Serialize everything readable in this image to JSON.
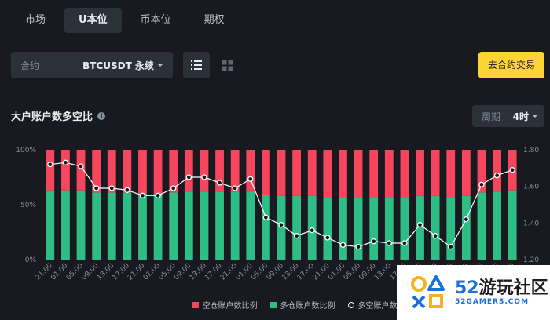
{
  "tabs": [
    {
      "label": "市场",
      "active": false
    },
    {
      "label": "U本位",
      "active": true
    },
    {
      "label": "币本位",
      "active": false
    },
    {
      "label": "期权",
      "active": false
    }
  ],
  "contract": {
    "label": "合约",
    "value": "BTCUSDT 永续"
  },
  "cta_label": "去合约交易",
  "section_title": "大户账户数多空比",
  "period": {
    "label": "周期",
    "value": "4时"
  },
  "legend": {
    "short": "空仓账户数比例",
    "long": "多仓账户数比例",
    "ratio": "多空账户数比值"
  },
  "watermark": {
    "brand": "52游玩社区",
    "brand_num": "52",
    "brand_rest": "游玩社区",
    "sub": "52GAMERS.COM"
  },
  "colors": {
    "short": "#f6465d",
    "long": "#2ebd85",
    "ratio": "#ffffff",
    "accent": "#fcd535"
  },
  "chart_data": {
    "type": "bar",
    "stacked": true,
    "categories": [
      "21:00",
      "01:00",
      "05:00",
      "09:00",
      "13:00",
      "17:00",
      "21:00",
      "01:00",
      "05:00",
      "09:00",
      "13:00",
      "17:00",
      "21:00",
      "01:00",
      "05:00",
      "09:00",
      "13:00",
      "17:00",
      "21:00",
      "01:00",
      "05:00",
      "09:00",
      "13:00",
      "17:00",
      "21:00",
      "01:00",
      "05:00",
      "09:00",
      "13:00",
      "17:00",
      "21:00"
    ],
    "series": [
      {
        "name": "多仓账户数比例",
        "values": [
          63,
          63,
          63,
          61,
          61,
          61,
          60,
          60,
          61,
          62,
          62,
          62,
          62,
          62,
          59,
          58,
          58,
          58,
          57,
          56,
          56,
          57,
          57,
          57,
          58,
          58,
          57,
          58,
          61,
          62,
          63
        ]
      },
      {
        "name": "空仓账户数比例",
        "values": [
          37,
          37,
          37,
          39,
          39,
          39,
          40,
          40,
          39,
          38,
          38,
          38,
          38,
          38,
          41,
          42,
          42,
          42,
          43,
          44,
          44,
          43,
          43,
          43,
          42,
          42,
          43,
          42,
          39,
          38,
          37
        ]
      }
    ],
    "ratio": {
      "name": "多空账户数比值",
      "values": [
        1.72,
        1.73,
        1.71,
        1.59,
        1.59,
        1.58,
        1.55,
        1.55,
        1.59,
        1.65,
        1.65,
        1.62,
        1.59,
        1.64,
        1.43,
        1.39,
        1.33,
        1.36,
        1.32,
        1.28,
        1.27,
        1.3,
        1.29,
        1.29,
        1.39,
        1.33,
        1.27,
        1.42,
        1.61,
        1.66,
        1.69
      ]
    },
    "y_left_ticks": [
      "100%",
      "50%",
      "0%"
    ],
    "y_right_ticks": [
      "1.80",
      "1.60",
      "1.40",
      "1.20"
    ],
    "ylim_left": [
      0,
      100
    ],
    "ylim_right": [
      1.2,
      1.8
    ]
  }
}
